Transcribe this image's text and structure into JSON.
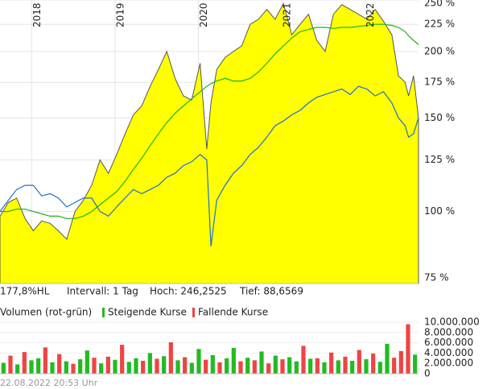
{
  "chart_data": [
    {
      "type": "area",
      "log_scale": true,
      "grid": true,
      "xlim": [
        2017.62,
        2022.64
      ],
      "xticks": [
        2018,
        2019,
        2020,
        2021,
        2022
      ],
      "ylim": [
        73.2,
        250
      ],
      "yticks": [
        {
          "value": 75,
          "label": "75 %"
        },
        {
          "value": 100,
          "label": "100 %"
        },
        {
          "value": 125,
          "label": "125 %"
        },
        {
          "value": 150,
          "label": "150 %"
        },
        {
          "value": 175,
          "label": "175 %"
        },
        {
          "value": 200,
          "label": "200 %"
        },
        {
          "value": 225,
          "label": "225 %"
        },
        {
          "value": 250,
          "label": "250 %"
        }
      ],
      "x": [
        2017.62,
        2017.72,
        2017.82,
        2017.92,
        2018.02,
        2018.12,
        2018.22,
        2018.32,
        2018.42,
        2018.52,
        2018.62,
        2018.72,
        2018.82,
        2018.92,
        2019.02,
        2019.12,
        2019.22,
        2019.32,
        2019.42,
        2019.52,
        2019.62,
        2019.72,
        2019.82,
        2019.92,
        2020.02,
        2020.1,
        2020.15,
        2020.22,
        2020.32,
        2020.42,
        2020.52,
        2020.62,
        2020.72,
        2020.82,
        2020.92,
        2021.02,
        2021.12,
        2021.22,
        2021.32,
        2021.42,
        2021.52,
        2021.62,
        2021.72,
        2021.82,
        2021.92,
        2022.02,
        2022.12,
        2022.22,
        2022.32,
        2022.4,
        2022.48,
        2022.52,
        2022.58,
        2022.64
      ],
      "series": [
        {
          "type": "area",
          "color": "#ffff00",
          "values": [
            98,
            104,
            106,
            97,
            92,
            96,
            95,
            92,
            88.66,
            100,
            105,
            112,
            125,
            118,
            128,
            140,
            152,
            158,
            172,
            185,
            200,
            178,
            165,
            162,
            190,
            131,
            160,
            185,
            195,
            200,
            205,
            225,
            230,
            240,
            230,
            246.25,
            215,
            225,
            235,
            210,
            200,
            235,
            245,
            240,
            235,
            230,
            240,
            228,
            215,
            180,
            175,
            165,
            180,
            150
          ]
        },
        {
          "type": "line",
          "color": "#1e6fc8",
          "values": [
            100,
            105,
            110,
            112,
            112,
            107,
            108,
            106,
            102,
            104,
            106,
            106,
            100,
            98,
            102,
            106,
            110,
            108,
            110,
            112,
            116,
            118,
            122,
            124,
            128,
            125,
            86,
            105,
            112,
            118,
            122,
            128,
            132,
            138,
            145,
            148,
            152,
            155,
            160,
            164,
            166,
            168,
            170,
            166,
            172,
            170,
            165,
            168,
            160,
            150,
            145,
            138,
            140,
            150
          ]
        },
        {
          "type": "line",
          "color": "#1db31d",
          "values": [
            100,
            100,
            101,
            101,
            100,
            99,
            98,
            98,
            97,
            97,
            98,
            100,
            103,
            106,
            109,
            114,
            120,
            126,
            133,
            140,
            147,
            153,
            158,
            163,
            168,
            172,
            174,
            176,
            178,
            176,
            176,
            178,
            183,
            190,
            198,
            205,
            212,
            218,
            220,
            222,
            222,
            221,
            222,
            222,
            223,
            224,
            225,
            225,
            224,
            222,
            218,
            214,
            210,
            206
          ]
        }
      ]
    },
    {
      "type": "bar",
      "title": "Volumen (rot-grün)",
      "grid": true,
      "ylim": [
        0,
        10000000
      ],
      "yticks": [
        0,
        {
          "value": 2000000,
          "label": "2.000.000"
        },
        {
          "value": 4000000,
          "label": "4.000.000"
        },
        {
          "value": 6000000,
          "label": "6.000.000"
        },
        {
          "value": 8000000,
          "label": "8.000.000"
        },
        {
          "value": 10000000,
          "label": "10.000.000"
        }
      ],
      "series": [
        {
          "name": "Steigende Kurse",
          "color": "#22bb22",
          "values": [
            2100000,
            null,
            1800000,
            null,
            2600000,
            3000000,
            null,
            2200000,
            null,
            2400000,
            null,
            2800000,
            4500000,
            null,
            2000000,
            null,
            2700000,
            null,
            2300000,
            3000000,
            null,
            4000000,
            null,
            3400000,
            null,
            2600000,
            null,
            2100000,
            4800000,
            null,
            3600000,
            null,
            3000000,
            5000000,
            null,
            3100000,
            null,
            4300000,
            null,
            3500000,
            null,
            3200000,
            2400000,
            null,
            2900000,
            null,
            2200000,
            null,
            2600000,
            null,
            2500000,
            null,
            2800000,
            null,
            2300000,
            5800000,
            null,
            null,
            null,
            3700000
          ]
        },
        {
          "name": "Fallende Kurse",
          "color": "#ee4444",
          "values": [
            null,
            3500000,
            null,
            4200000,
            null,
            null,
            5100000,
            null,
            3800000,
            null,
            1900000,
            null,
            null,
            3100000,
            null,
            3300000,
            null,
            5600000,
            null,
            null,
            2500000,
            null,
            2900000,
            null,
            6100000,
            null,
            3200000,
            null,
            null,
            2700000,
            null,
            2200000,
            null,
            null,
            2400000,
            null,
            2600000,
            null,
            2000000,
            null,
            2800000,
            null,
            null,
            5400000,
            null,
            3000000,
            null,
            4100000,
            null,
            3300000,
            null,
            4600000,
            null,
            3900000,
            null,
            null,
            3100000,
            4400000,
            9600000,
            null
          ]
        }
      ]
    }
  ],
  "info": [
    "177,8%HL",
    "Intervall: 1 Tag",
    "Hoch: 246,2525",
    "Tief: 88,6569"
  ],
  "footer": "22.08.2022 20:53 Uhr"
}
